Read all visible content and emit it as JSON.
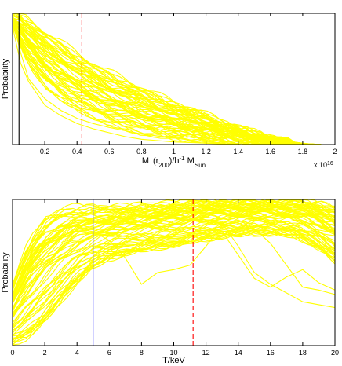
{
  "chart_data": [
    {
      "type": "line",
      "title": "",
      "ylabel": "Probability",
      "xlabel_parts": {
        "base": "M",
        "sub1": "T",
        "mid1": "(r",
        "sub2": "200",
        "mid2": ")/h",
        "sup": "-1",
        "mid3": " M",
        "sub3": "Sun"
      },
      "x_multiplier": {
        "base": "x 10",
        "exp": "16"
      },
      "xlim": [
        0.0,
        2.0
      ],
      "ylim": [
        0,
        1.0
      ],
      "xticks": [
        "0.2",
        "0.4",
        "0.6",
        "0.8",
        "1",
        "1.2",
        "1.4",
        "1.6",
        "1.8",
        "2"
      ],
      "xtick_values": [
        0.2,
        0.4,
        0.6,
        0.8,
        1.0,
        1.2,
        1.4,
        1.6,
        1.8,
        2.0
      ],
      "grid": false,
      "line_color": "#ffff00",
      "reference_lines": [
        {
          "x": 0.04,
          "color": "#000000",
          "style": "solid"
        },
        {
          "x": 0.43,
          "color": "#ff0000",
          "style": "dashed"
        }
      ],
      "envelope": {
        "x": [
          0.0,
          0.05,
          0.1,
          0.2,
          0.3,
          0.4,
          0.5,
          0.6,
          0.7,
          0.8,
          0.9,
          1.0,
          1.1,
          1.2,
          1.3,
          1.4,
          1.5,
          1.6,
          1.7,
          1.8,
          1.9,
          2.0
        ],
        "upper": [
          0.98,
          1.0,
          0.97,
          0.88,
          0.8,
          0.71,
          0.64,
          0.57,
          0.51,
          0.45,
          0.39,
          0.34,
          0.29,
          0.24,
          0.19,
          0.14,
          0.1,
          0.06,
          0.03,
          0.01,
          0.0,
          0.0
        ],
        "lower": [
          0.92,
          0.75,
          0.6,
          0.44,
          0.34,
          0.26,
          0.2,
          0.15,
          0.11,
          0.08,
          0.06,
          0.04,
          0.03,
          0.02,
          0.01,
          0.0,
          0.0,
          0.0,
          0.0,
          0.0,
          0.0,
          0.0
        ]
      },
      "outliers": [
        {
          "x": [
            0.0,
            0.05,
            0.1,
            0.2,
            0.3,
            0.4,
            0.5,
            0.6,
            0.7,
            0.8,
            0.9,
            1.0,
            1.2,
            1.4,
            1.6
          ],
          "y": [
            0.9,
            0.62,
            0.48,
            0.3,
            0.22,
            0.16,
            0.12,
            0.09,
            0.06,
            0.04,
            0.03,
            0.02,
            0.01,
            0.0,
            0.0
          ]
        },
        {
          "x": [
            0.0,
            0.05,
            0.1,
            0.2,
            0.3,
            0.4,
            0.5,
            0.6,
            0.8,
            1.0,
            1.2,
            1.4,
            1.5
          ],
          "y": [
            0.95,
            0.7,
            0.5,
            0.35,
            0.26,
            0.2,
            0.16,
            0.13,
            0.08,
            0.05,
            0.02,
            0.0,
            0.0
          ]
        }
      ],
      "n_curves": 60
    },
    {
      "type": "line",
      "title": "",
      "ylabel": "Probability",
      "xlabel": "T/keV",
      "xlim": [
        0,
        20
      ],
      "ylim": [
        0,
        1.0
      ],
      "xticks": [
        "0",
        "2",
        "4",
        "6",
        "8",
        "10",
        "12",
        "14",
        "16",
        "18",
        "20"
      ],
      "xtick_values": [
        0,
        2,
        4,
        6,
        8,
        10,
        12,
        14,
        16,
        18,
        20
      ],
      "grid": false,
      "line_color": "#ffff00",
      "reference_lines": [
        {
          "x": 5.0,
          "color": "#6666ff",
          "style": "solid"
        },
        {
          "x": 11.2,
          "color": "#ff0000",
          "style": "dashed"
        }
      ],
      "envelope": {
        "x": [
          0,
          1,
          2,
          3,
          4,
          5,
          6,
          7,
          8,
          9,
          10,
          11,
          12,
          13,
          14,
          15,
          16,
          17,
          18,
          19,
          20
        ],
        "upper": [
          0.42,
          0.72,
          0.88,
          0.94,
          0.96,
          0.96,
          0.95,
          0.96,
          0.97,
          0.97,
          0.98,
          0.99,
          1.0,
          1.0,
          1.0,
          1.0,
          1.0,
          1.0,
          1.0,
          0.98,
          0.95
        ],
        "lower": [
          0.0,
          0.04,
          0.14,
          0.28,
          0.42,
          0.52,
          0.58,
          0.62,
          0.64,
          0.66,
          0.68,
          0.7,
          0.72,
          0.74,
          0.75,
          0.76,
          0.76,
          0.75,
          0.72,
          0.66,
          0.56
        ]
      },
      "outliers": [
        {
          "x": [
            3,
            4,
            5,
            6,
            7,
            8,
            9,
            10,
            11,
            12,
            13,
            14,
            15,
            16,
            17,
            18,
            19,
            20
          ],
          "y": [
            0.7,
            0.8,
            0.78,
            0.72,
            0.6,
            0.42,
            0.5,
            0.52,
            0.55,
            0.68,
            0.82,
            0.86,
            0.8,
            0.7,
            0.55,
            0.4,
            0.38,
            0.35
          ]
        },
        {
          "x": [
            8,
            9,
            10,
            11,
            12,
            13,
            14,
            15,
            16,
            17,
            18,
            19,
            20
          ],
          "y": [
            0.75,
            0.7,
            0.68,
            0.7,
            0.74,
            0.78,
            0.62,
            0.46,
            0.4,
            0.47,
            0.52,
            0.43,
            0.38
          ]
        },
        {
          "x": [
            10,
            11,
            12,
            13,
            14,
            15,
            16,
            17,
            18,
            19,
            20
          ],
          "y": [
            0.85,
            0.86,
            0.86,
            0.84,
            0.68,
            0.5,
            0.42,
            0.36,
            0.3,
            0.28,
            0.26
          ]
        }
      ],
      "n_curves": 70
    }
  ]
}
